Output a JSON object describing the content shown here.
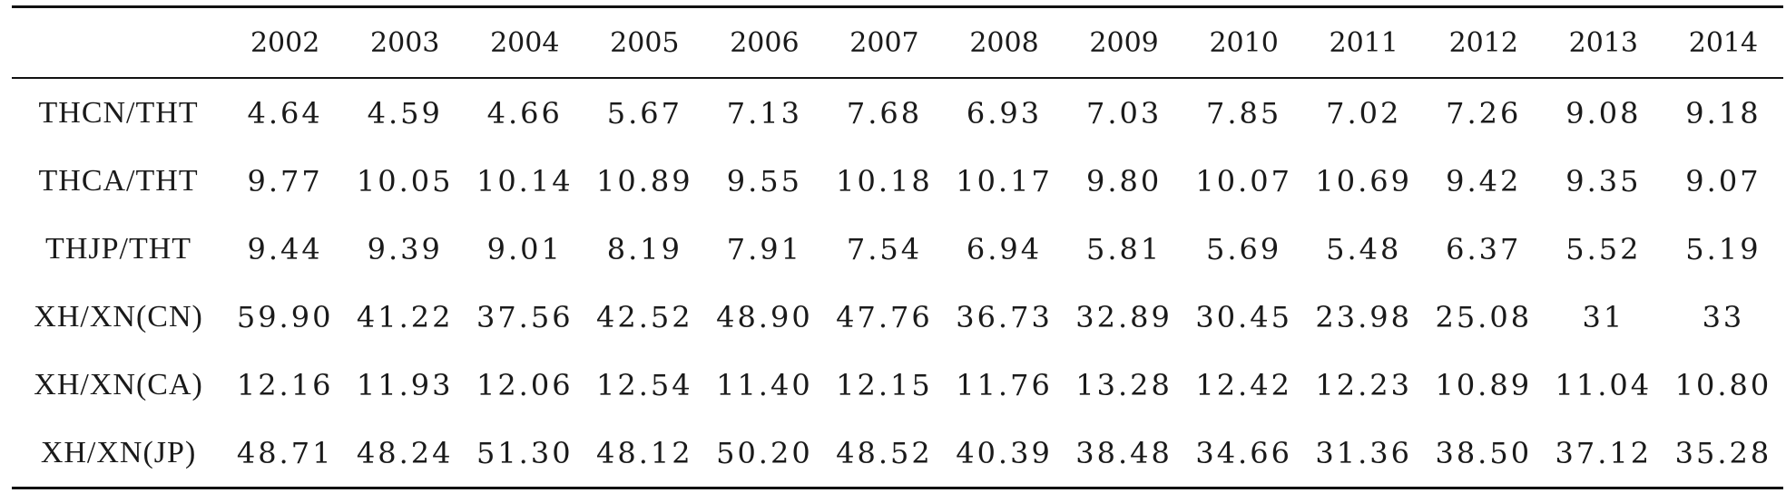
{
  "table": {
    "corner": "",
    "years": [
      "2002",
      "2003",
      "2004",
      "2005",
      "2006",
      "2007",
      "2008",
      "2009",
      "2010",
      "2011",
      "2012",
      "2013",
      "2014"
    ],
    "rows": [
      {
        "label": "THCN/THT",
        "values": [
          "4.64",
          "4.59",
          "4.66",
          "5.67",
          "7.13",
          "7.68",
          "6.93",
          "7.03",
          "7.85",
          "7.02",
          "7.26",
          "9.08",
          "9.18"
        ]
      },
      {
        "label": "THCA/THT",
        "values": [
          "9.77",
          "10.05",
          "10.14",
          "10.89",
          "9.55",
          "10.18",
          "10.17",
          "9.80",
          "10.07",
          "10.69",
          "9.42",
          "9.35",
          "9.07"
        ]
      },
      {
        "label": "THJP/THT",
        "values": [
          "9.44",
          "9.39",
          "9.01",
          "8.19",
          "7.91",
          "7.54",
          "6.94",
          "5.81",
          "5.69",
          "5.48",
          "6.37",
          "5.52",
          "5.19"
        ]
      },
      {
        "label": "XH/XN(CN)",
        "values": [
          "59.90",
          "41.22",
          "37.56",
          "42.52",
          "48.90",
          "47.76",
          "36.73",
          "32.89",
          "30.45",
          "23.98",
          "25.08",
          "31",
          "33"
        ]
      },
      {
        "label": "XH/XN(CA)",
        "values": [
          "12.16",
          "11.93",
          "12.06",
          "12.54",
          "11.40",
          "12.15",
          "11.76",
          "13.28",
          "12.42",
          "12.23",
          "10.89",
          "11.04",
          "10.80"
        ]
      },
      {
        "label": "XH/XN(JP)",
        "values": [
          "48.71",
          "48.24",
          "51.30",
          "48.12",
          "50.20",
          "48.52",
          "40.39",
          "38.48",
          "34.66",
          "31.36",
          "38.50",
          "37.12",
          "35.28"
        ]
      }
    ]
  }
}
